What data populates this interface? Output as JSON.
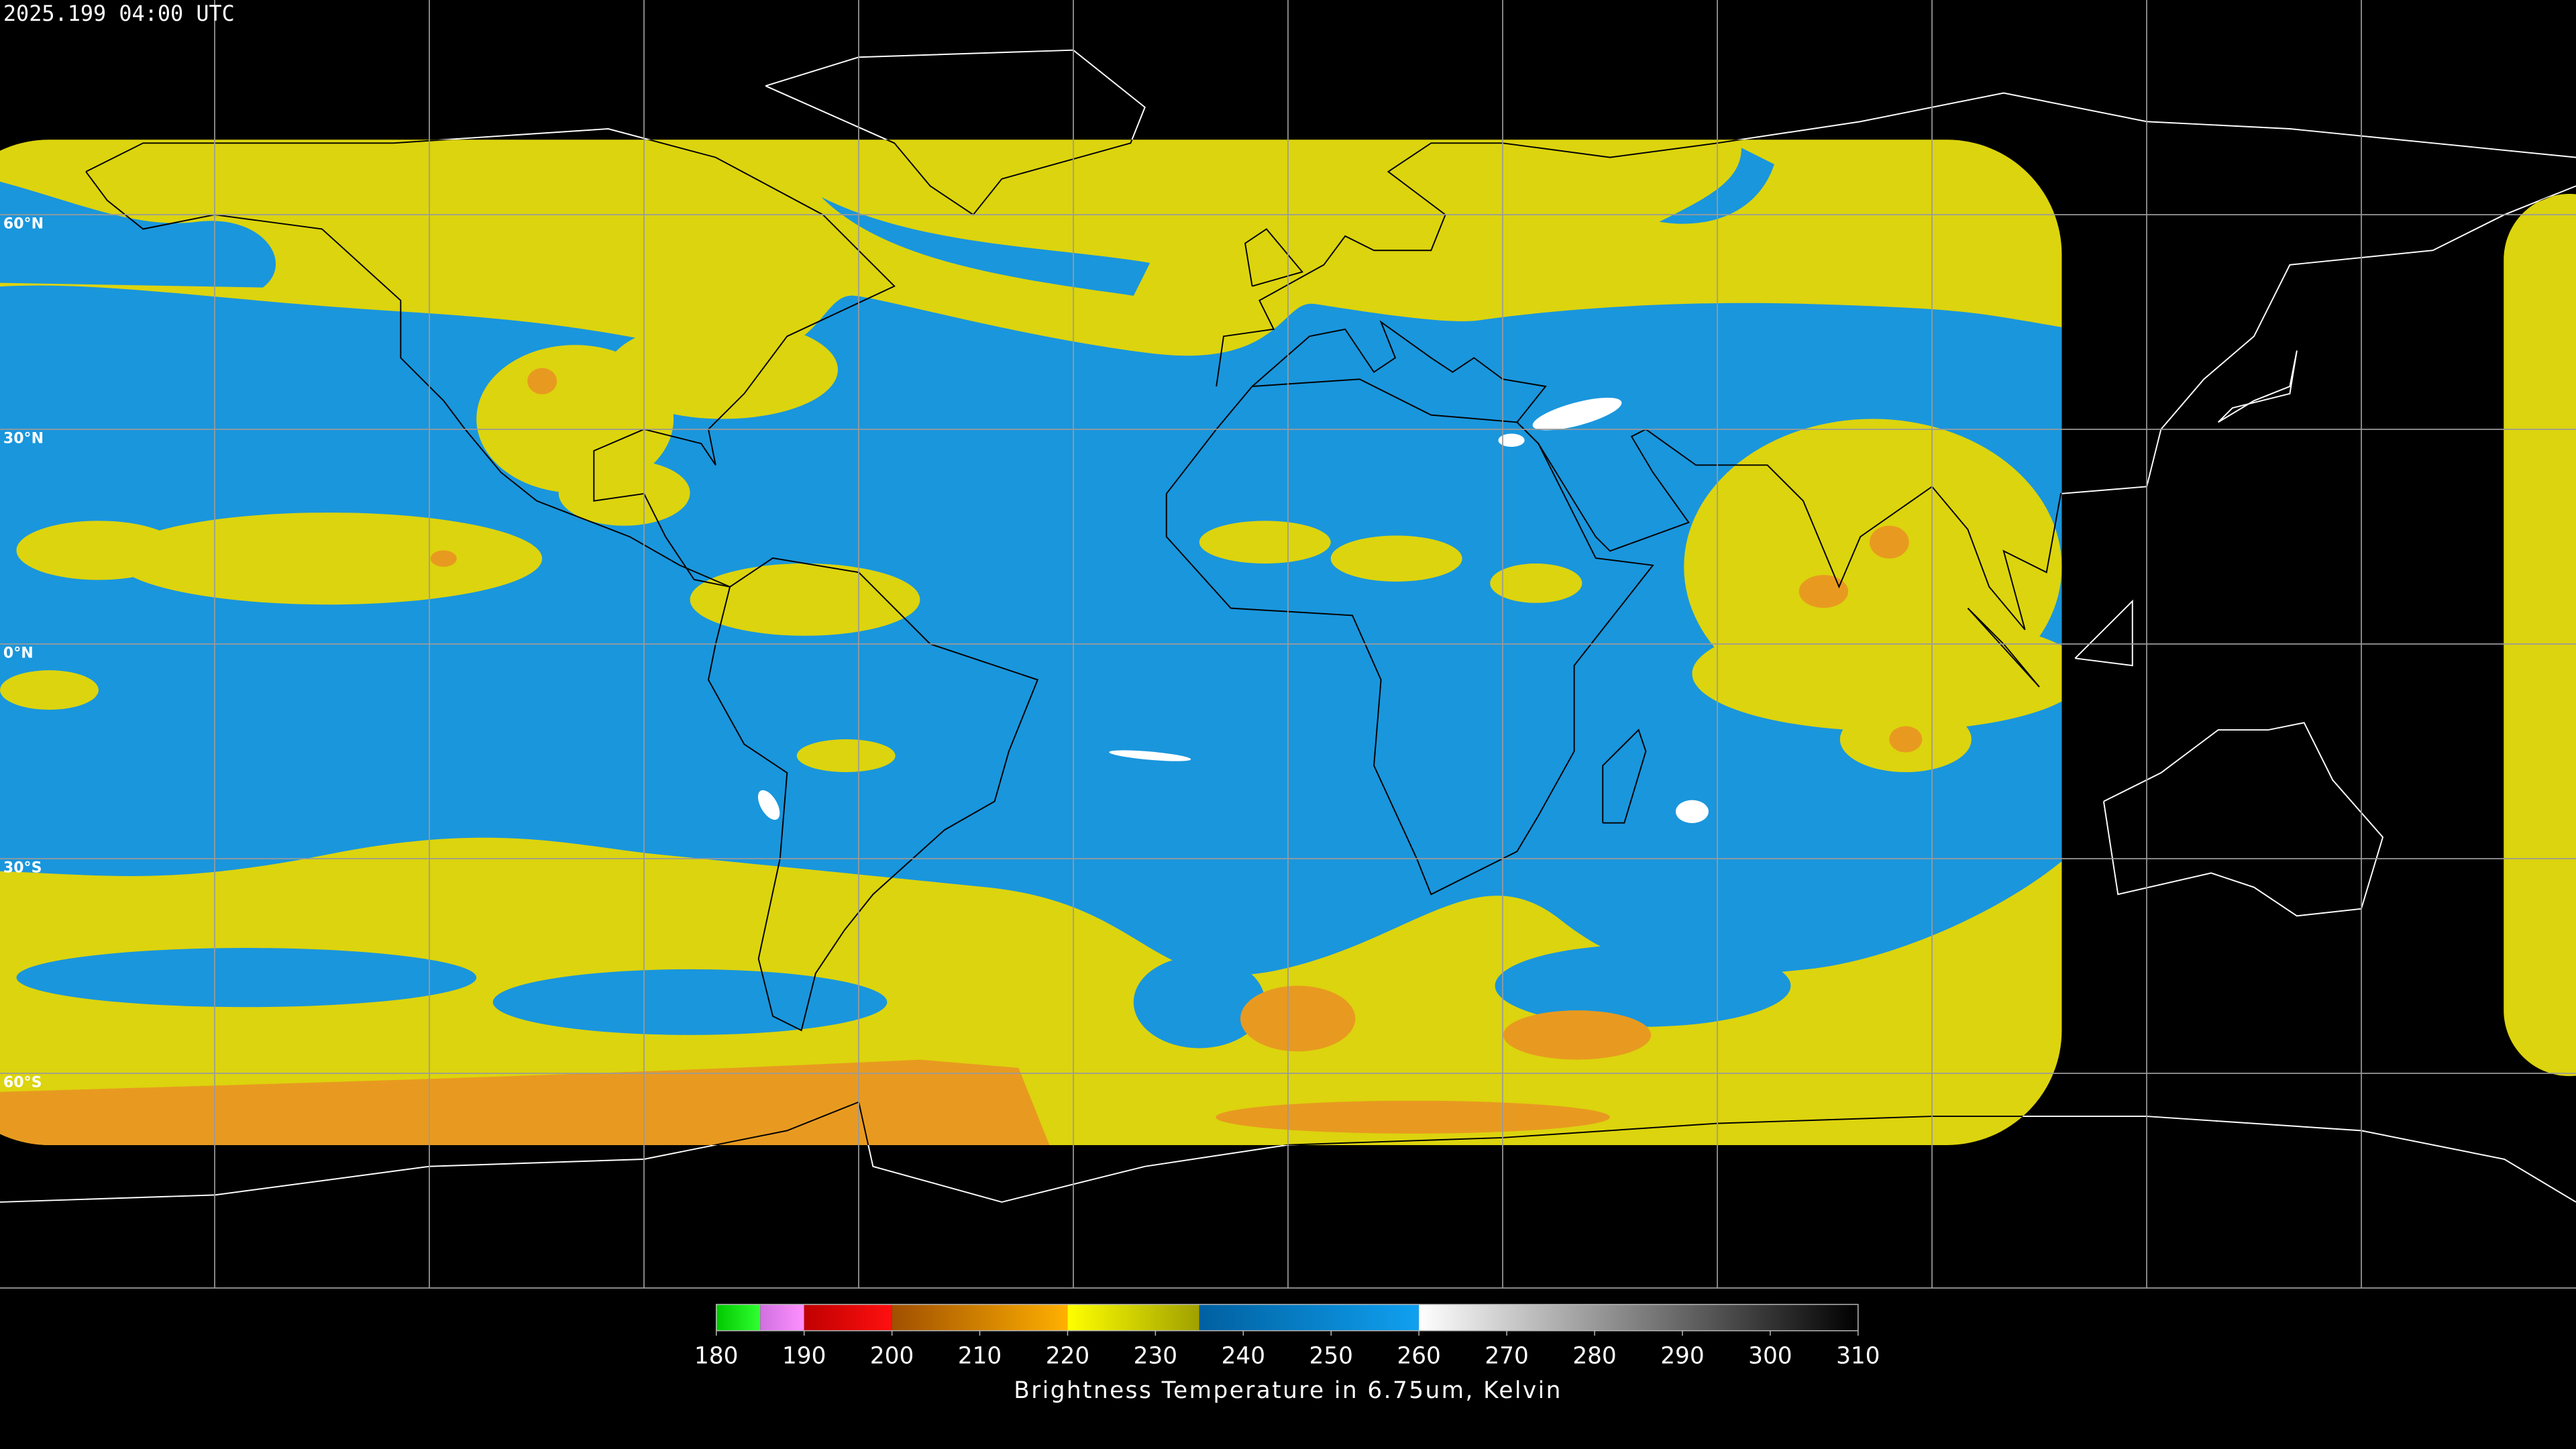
{
  "timestamp": "2025.199 04:00 UTC",
  "latitude_lines": [
    {
      "value": 60,
      "label": "60°N"
    },
    {
      "value": 30,
      "label": "30°N"
    },
    {
      "value": 0,
      "label": "0°N"
    },
    {
      "value": -30,
      "label": "30°S"
    },
    {
      "value": -60,
      "label": "60°S"
    }
  ],
  "colorbar": {
    "label": "Brightness Temperature in 6.75um, Kelvin",
    "lim": [
      180,
      310
    ],
    "ticks": [
      180,
      190,
      200,
      210,
      220,
      230,
      240,
      250,
      260,
      270,
      280,
      290,
      300,
      310
    ],
    "segments": [
      {
        "range": [
          180,
          185
        ],
        "colors": [
          "#00c800",
          "#30ff30"
        ]
      },
      {
        "range": [
          185,
          190
        ],
        "colors": [
          "#d070e0",
          "#ff90ff"
        ]
      },
      {
        "range": [
          190,
          200
        ],
        "colors": [
          "#c00000",
          "#ff1010"
        ]
      },
      {
        "range": [
          200,
          220
        ],
        "colors": [
          "#a05000",
          "#ffb000"
        ]
      },
      {
        "range": [
          220,
          235
        ],
        "colors": [
          "#ffff00",
          "#a0a000"
        ]
      },
      {
        "range": [
          235,
          260
        ],
        "colors": [
          "#0060a0",
          "#10a0f0"
        ]
      },
      {
        "range": [
          260,
          310
        ],
        "colors": [
          "#ffffff",
          "#000000"
        ]
      }
    ]
  }
}
